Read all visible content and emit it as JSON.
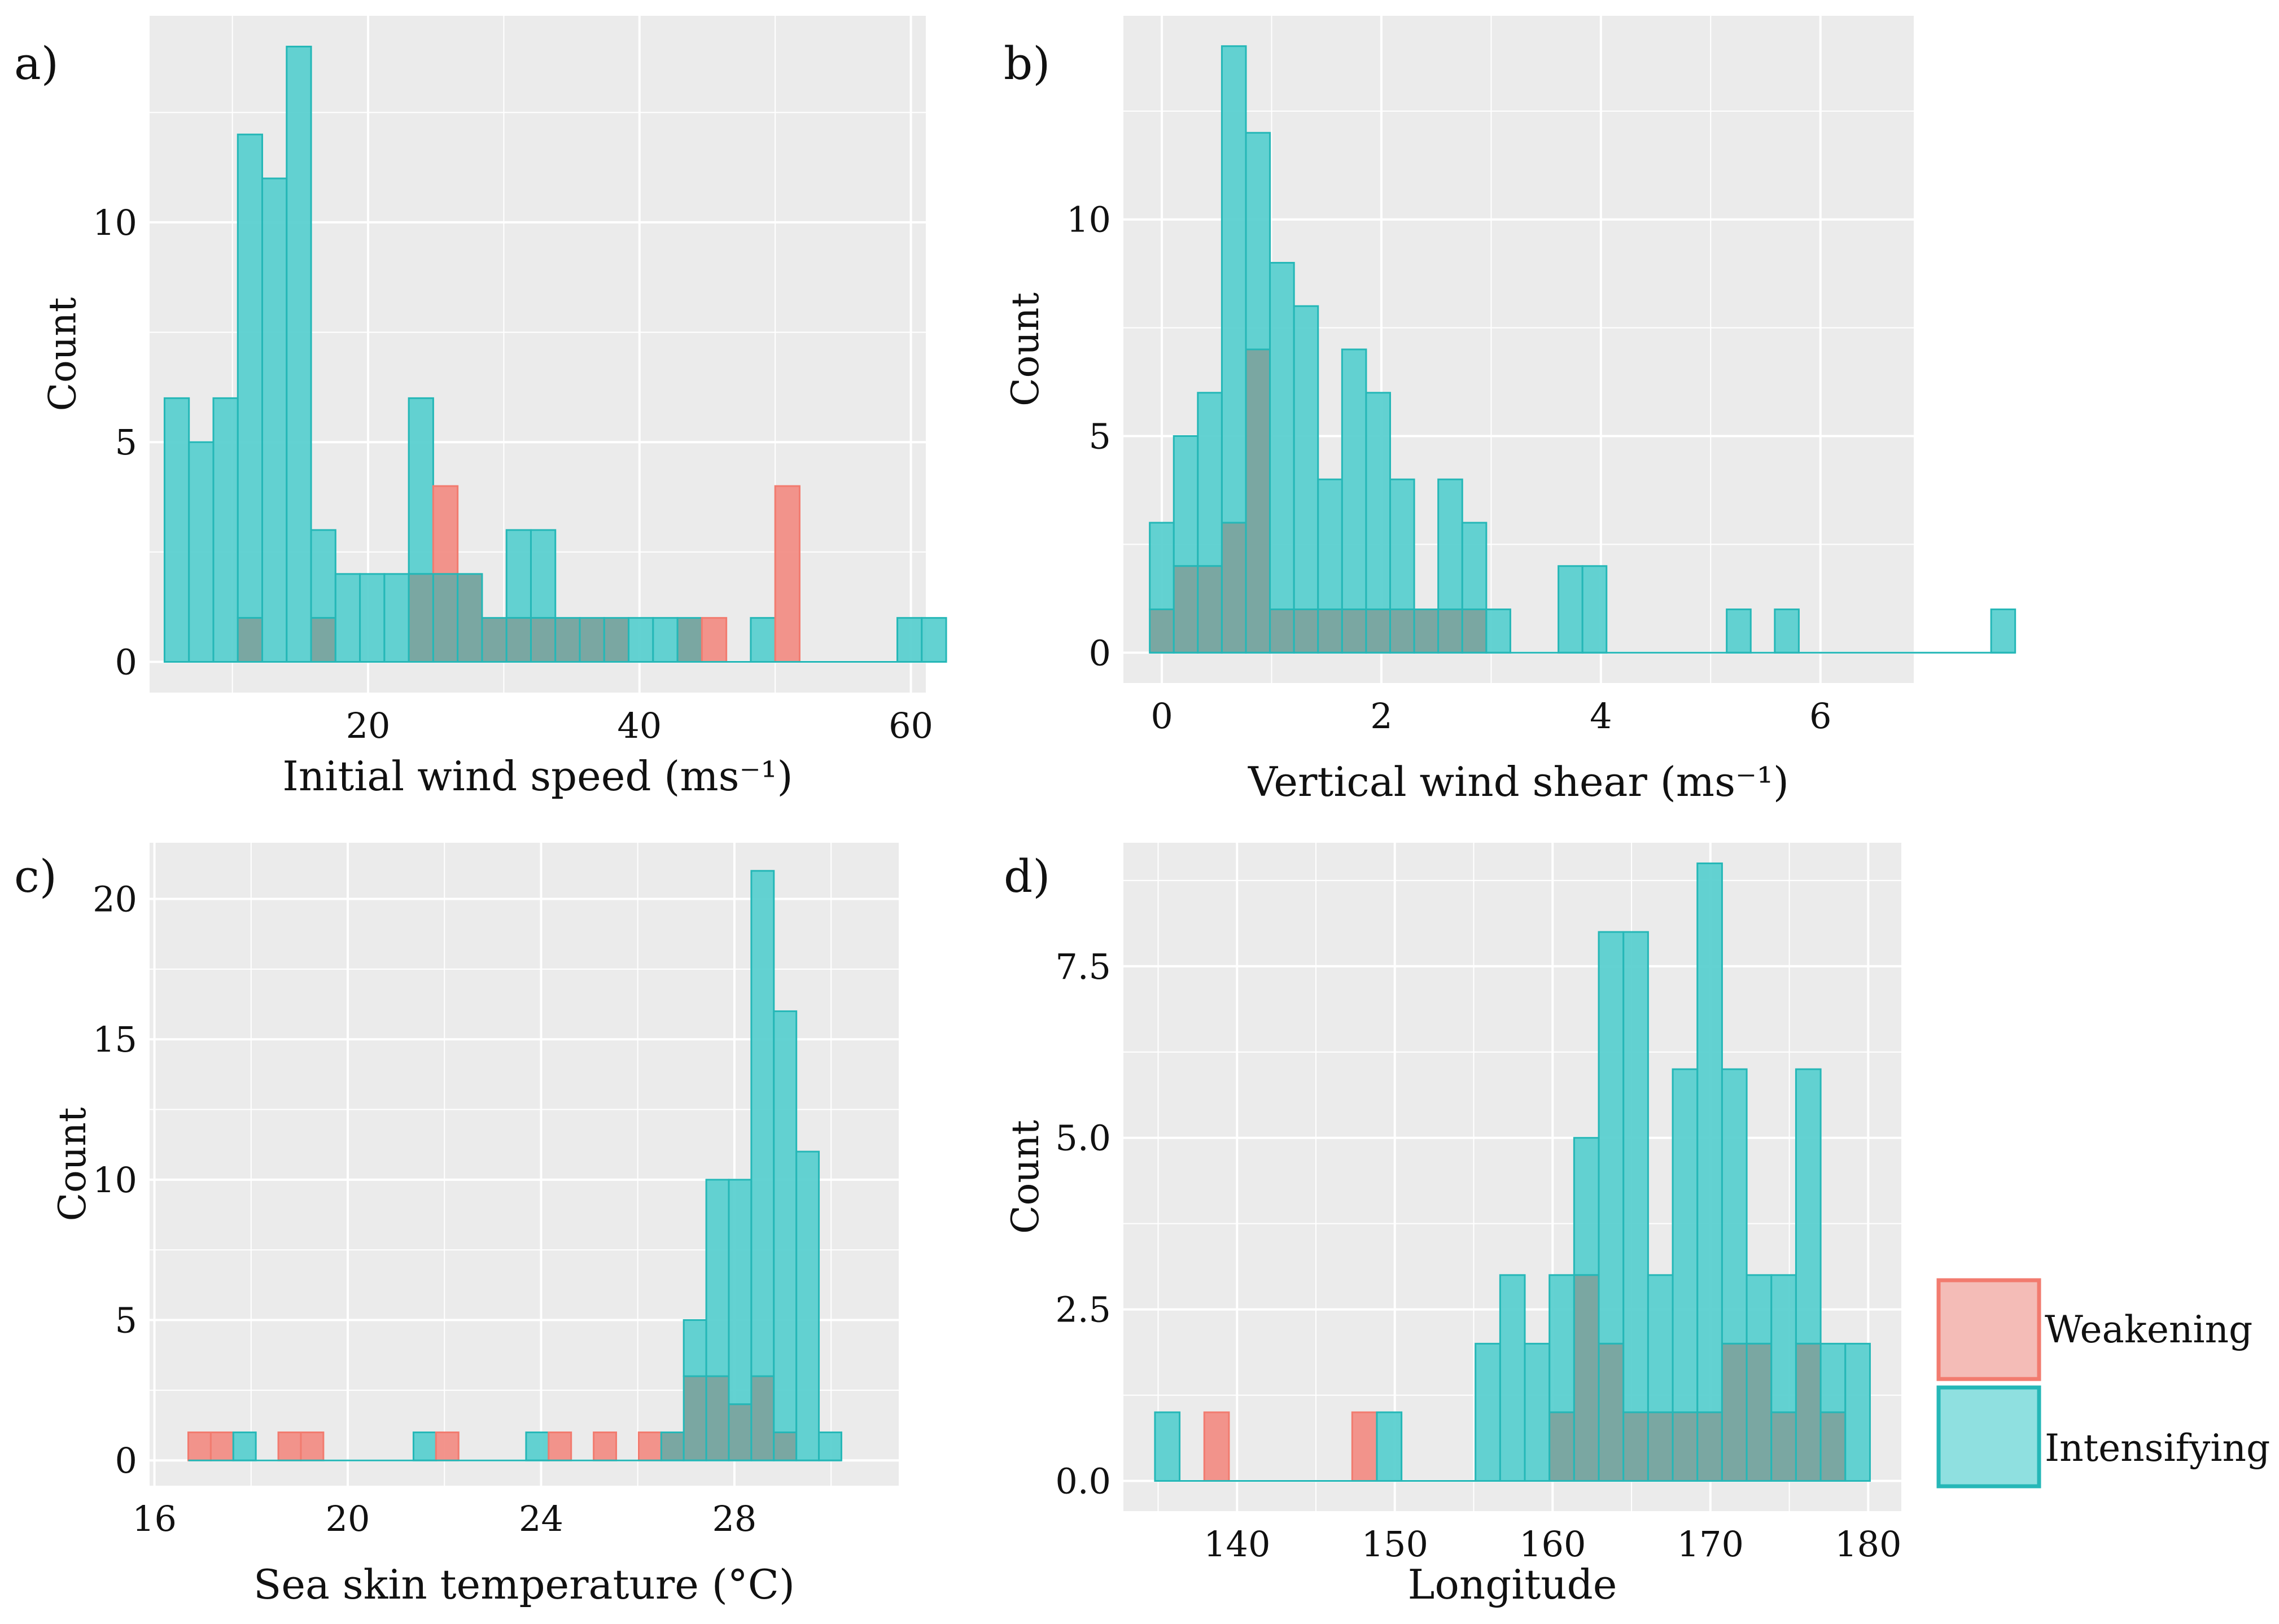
{
  "colors": {
    "panel_bg": "#ebebeb",
    "grid": "#ffffff",
    "weakening_fill": "#f28e86",
    "weakening_stroke": "#f27b6f",
    "intensifying_fill": "#5bd0d0",
    "intensifying_stroke": "#25b7b7",
    "overlap_fill": "#7aa7a2"
  },
  "legend": {
    "items": [
      {
        "label": "Weakening",
        "key": "weakening"
      },
      {
        "label": "Intensifying",
        "key": "intensifying"
      }
    ]
  },
  "chart_data": [
    {
      "type": "bar",
      "panel": "a)",
      "xlabel": "Initial wind speed (ms⁻¹)",
      "ylabel": "Count",
      "xlim": [
        3.9,
        61.1
      ],
      "ylim": [
        -0.7,
        14.7
      ],
      "xticks": [
        20,
        40,
        60
      ],
      "yticks": [
        0,
        5,
        10
      ],
      "bin_start": 5.0,
      "bin_width": 1.8,
      "series": [
        {
          "name": "Intensifying",
          "values": [
            6,
            5,
            6,
            12,
            11,
            14,
            3,
            2,
            2,
            2,
            6,
            2,
            2,
            1,
            3,
            3,
            1,
            1,
            1,
            1,
            1,
            1,
            0,
            0,
            1,
            0,
            0,
            0,
            0,
            0,
            1,
            1
          ]
        },
        {
          "name": "Weakening",
          "values": [
            0,
            0,
            0,
            1,
            0,
            0,
            1,
            0,
            0,
            0,
            2,
            4,
            2,
            1,
            1,
            1,
            1,
            1,
            1,
            0,
            0,
            1,
            1,
            0,
            0,
            4,
            0,
            0,
            0,
            0,
            0,
            0
          ]
        }
      ]
    },
    {
      "type": "bar",
      "panel": "b)",
      "xlabel": "Vertical wind shear (ms⁻¹)",
      "ylabel": "Count",
      "xlim": [
        -0.35,
        6.85
      ],
      "ylim": [
        -0.7,
        14.7
      ],
      "xticks": [
        0,
        2,
        4,
        6
      ],
      "yticks": [
        0,
        5,
        10
      ],
      "bin_start": -0.11,
      "bin_width": 0.219,
      "series": [
        {
          "name": "Intensifying",
          "values": [
            3,
            5,
            6,
            14,
            12,
            9,
            8,
            4,
            7,
            6,
            4,
            1,
            4,
            3,
            1,
            0,
            0,
            2,
            2,
            0,
            0,
            0,
            0,
            0,
            1,
            0,
            1,
            0,
            0,
            0,
            0,
            0,
            0,
            0,
            0,
            1
          ]
        },
        {
          "name": "Weakening",
          "values": [
            1,
            2,
            2,
            3,
            7,
            1,
            1,
            1,
            1,
            1,
            1,
            1,
            1,
            1,
            0,
            0,
            0,
            0,
            0,
            0,
            0,
            0,
            0,
            0,
            0,
            0,
            0,
            0,
            0,
            0,
            0,
            0,
            0,
            0,
            0,
            0
          ]
        }
      ]
    },
    {
      "type": "bar",
      "panel": "c)",
      "xlabel": "Sea skin temperature (°C)",
      "ylabel": "Count",
      "xlim": [
        15.9,
        31.4
      ],
      "ylim": [
        -0.9,
        22.0
      ],
      "xticks": [
        16,
        20,
        24,
        28
      ],
      "yticks": [
        0,
        5,
        10,
        15,
        20
      ],
      "bin_start": 16.7,
      "bin_width": 0.466,
      "series": [
        {
          "name": "Intensifying",
          "values": [
            0,
            0,
            1,
            0,
            0,
            0,
            0,
            0,
            0,
            0,
            1,
            0,
            0,
            0,
            0,
            1,
            0,
            0,
            0,
            0,
            0,
            1,
            5,
            10,
            10,
            21,
            16,
            11,
            1
          ]
        },
        {
          "name": "Weakening",
          "values": [
            1,
            1,
            0,
            0,
            1,
            1,
            0,
            0,
            0,
            0,
            0,
            1,
            0,
            0,
            0,
            0,
            1,
            0,
            1,
            0,
            1,
            1,
            3,
            3,
            2,
            3,
            1,
            0,
            0
          ]
        }
      ]
    },
    {
      "type": "bar",
      "panel": "d)",
      "xlabel": "Longitude",
      "ylabel": "Count",
      "xlim": [
        132.8,
        182.1
      ],
      "ylim": [
        -0.44,
        9.3
      ],
      "xticks": [
        140,
        150,
        160,
        170,
        180
      ],
      "yticks": [
        0.0,
        2.5,
        5.0,
        7.5
      ],
      "ytick_labels": [
        "0.0",
        "2.5",
        "5.0",
        "7.5"
      ],
      "bin_start": 134.8,
      "bin_width": 1.5625,
      "series": [
        {
          "name": "Intensifying",
          "values": [
            1,
            0,
            0,
            0,
            0,
            0,
            0,
            0,
            0,
            1,
            0,
            0,
            0,
            2,
            3,
            2,
            3,
            5,
            8,
            8,
            3,
            6,
            9,
            6,
            3,
            3,
            6,
            2,
            2
          ]
        },
        {
          "name": "Weakening",
          "values": [
            0,
            0,
            1,
            0,
            0,
            0,
            0,
            0,
            1,
            0,
            0,
            0,
            0,
            0,
            0,
            0,
            1,
            3,
            2,
            1,
            1,
            1,
            1,
            2,
            2,
            1,
            2,
            1,
            0
          ]
        }
      ]
    }
  ]
}
